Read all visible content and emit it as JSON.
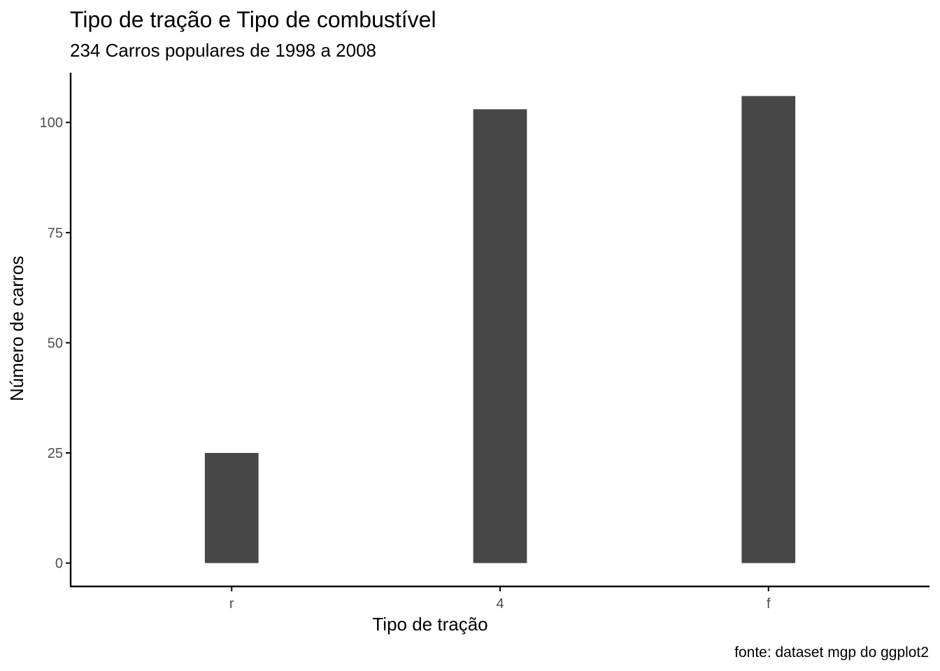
{
  "chart_data": {
    "type": "bar",
    "title": "Tipo de tração e Tipo de combustível",
    "subtitle": "234 Carros populares de 1998 a 2008",
    "xlabel": "Tipo de tração",
    "ylabel": "Número de carros",
    "caption": "fonte: dataset mgp do ggplot2",
    "categories": [
      "r",
      "4",
      "f"
    ],
    "values": [
      25,
      103,
      106
    ],
    "ylim": [
      -5.3,
      111.3
    ],
    "yticks": [
      0,
      25,
      50,
      75,
      100
    ],
    "grid": false,
    "legend": "none",
    "bar_color": "#474747",
    "axis_color": "#000000",
    "tick_label_color": "#4d4d4d"
  }
}
